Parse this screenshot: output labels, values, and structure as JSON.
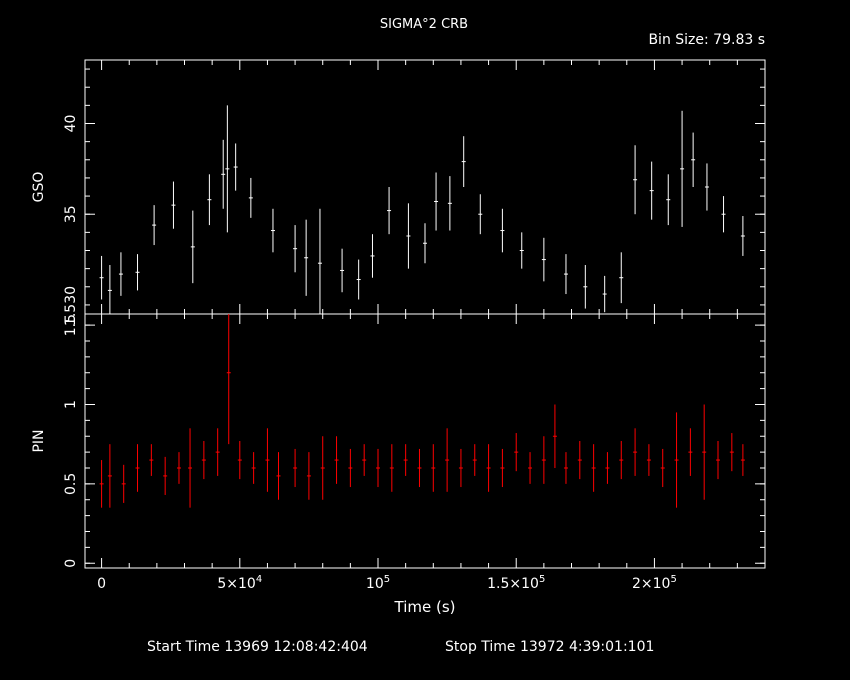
{
  "header": {
    "title": "SIGMA°2 CRB",
    "bin_size": "Bin Size: 79.83 s"
  },
  "footer": {
    "start_time": "Start Time 13969 12:08:42:404",
    "stop_time": "Stop Time 13972  4:39:01:101"
  },
  "colors": {
    "background": "#000000",
    "gso": "#ffffff",
    "pin": "#ff0000",
    "axes": "#ffffff"
  },
  "chart_data": [
    {
      "type": "scatter",
      "name": "gso-panel",
      "ylabel": "GSO",
      "xlabel": "",
      "xlim": [
        -6000,
        240000
      ],
      "ylim": [
        29.5,
        43.5
      ],
      "y_ticks": [
        35,
        40
      ],
      "y_tick_labels": [
        "35",
        "40"
      ],
      "y_bottom_label": "1.530",
      "error_bars": true,
      "series": [
        {
          "color": "#ffffff",
          "x": [
            0,
            3000,
            7000,
            13000,
            19000,
            26000,
            33000,
            39000,
            44000,
            45500,
            48500,
            54000,
            62000,
            70000,
            74000,
            79000,
            87000,
            93000,
            98000,
            104000,
            111000,
            117000,
            121000,
            126000,
            131000,
            137000,
            145000,
            152000,
            160000,
            168000,
            175000,
            182000,
            188000,
            193000,
            199000,
            205000,
            210000,
            214000,
            219000,
            225000,
            232000
          ],
          "y": [
            31.5,
            30.8,
            31.7,
            31.8,
            34.4,
            35.5,
            33.2,
            35.8,
            37.2,
            37.5,
            37.6,
            35.9,
            34.1,
            33.1,
            32.6,
            32.3,
            31.9,
            31.4,
            32.7,
            35.2,
            33.8,
            33.4,
            35.7,
            35.6,
            37.9,
            35.0,
            34.1,
            33.0,
            32.5,
            31.7,
            31.0,
            30.6,
            31.5,
            36.9,
            36.3,
            35.8,
            37.5,
            38.0,
            36.5,
            35.0,
            33.8
          ],
          "err": [
            1.2,
            1.4,
            1.2,
            1.0,
            1.1,
            1.3,
            2.0,
            1.4,
            1.9,
            3.5,
            1.3,
            1.1,
            1.2,
            1.3,
            2.1,
            3.0,
            1.2,
            1.1,
            1.2,
            1.3,
            1.8,
            1.1,
            1.6,
            1.5,
            1.4,
            1.1,
            1.2,
            1.0,
            1.2,
            1.1,
            1.2,
            1.0,
            1.4,
            1.9,
            1.6,
            1.4,
            3.2,
            1.5,
            1.3,
            1.0,
            1.1
          ]
        }
      ]
    },
    {
      "type": "scatter",
      "name": "pin-panel",
      "ylabel": "PIN",
      "xlabel": "Time (s)",
      "xlim": [
        -6000,
        240000
      ],
      "ylim": [
        -0.03,
        1.57
      ],
      "y_ticks": [
        0,
        0.5,
        1,
        1.5
      ],
      "y_tick_labels": [
        "0",
        "0.5",
        "1",
        "1.5"
      ],
      "x_ticks": [
        0,
        50000,
        100000,
        150000,
        200000
      ],
      "x_tick_labels": [
        [
          "0",
          ""
        ],
        [
          "5×10",
          "4"
        ],
        [
          "10",
          "5"
        ],
        [
          "1.5×10",
          "5"
        ],
        [
          "2×10",
          "5"
        ]
      ],
      "error_bars": true,
      "series": [
        {
          "color": "#ff0000",
          "x": [
            0,
            3000,
            8000,
            13000,
            18000,
            23000,
            28000,
            32000,
            37000,
            42000,
            46000,
            50000,
            55000,
            60000,
            64000,
            70000,
            75000,
            80000,
            85000,
            90000,
            95000,
            100000,
            105000,
            110000,
            115000,
            120000,
            125000,
            130000,
            135000,
            140000,
            145000,
            150000,
            155000,
            160000,
            164000,
            168000,
            173000,
            178000,
            183000,
            188000,
            193000,
            198000,
            203000,
            208000,
            213000,
            218000,
            223000,
            228000,
            232000
          ],
          "y": [
            0.5,
            0.55,
            0.5,
            0.6,
            0.65,
            0.55,
            0.6,
            0.6,
            0.65,
            0.7,
            1.2,
            0.65,
            0.6,
            0.65,
            0.55,
            0.6,
            0.55,
            0.6,
            0.65,
            0.6,
            0.65,
            0.6,
            0.6,
            0.65,
            0.6,
            0.6,
            0.65,
            0.6,
            0.65,
            0.6,
            0.6,
            0.7,
            0.6,
            0.65,
            0.8,
            0.6,
            0.65,
            0.6,
            0.6,
            0.65,
            0.7,
            0.65,
            0.6,
            0.65,
            0.7,
            0.7,
            0.65,
            0.7,
            0.65
          ],
          "err": [
            0.15,
            0.2,
            0.12,
            0.15,
            0.1,
            0.12,
            0.1,
            0.25,
            0.12,
            0.15,
            0.45,
            0.12,
            0.1,
            0.2,
            0.15,
            0.12,
            0.15,
            0.2,
            0.15,
            0.12,
            0.1,
            0.12,
            0.15,
            0.1,
            0.12,
            0.15,
            0.2,
            0.12,
            0.1,
            0.15,
            0.12,
            0.12,
            0.1,
            0.15,
            0.2,
            0.1,
            0.12,
            0.15,
            0.1,
            0.12,
            0.15,
            0.1,
            0.12,
            0.3,
            0.15,
            0.3,
            0.12,
            0.12,
            0.1
          ]
        }
      ]
    }
  ]
}
